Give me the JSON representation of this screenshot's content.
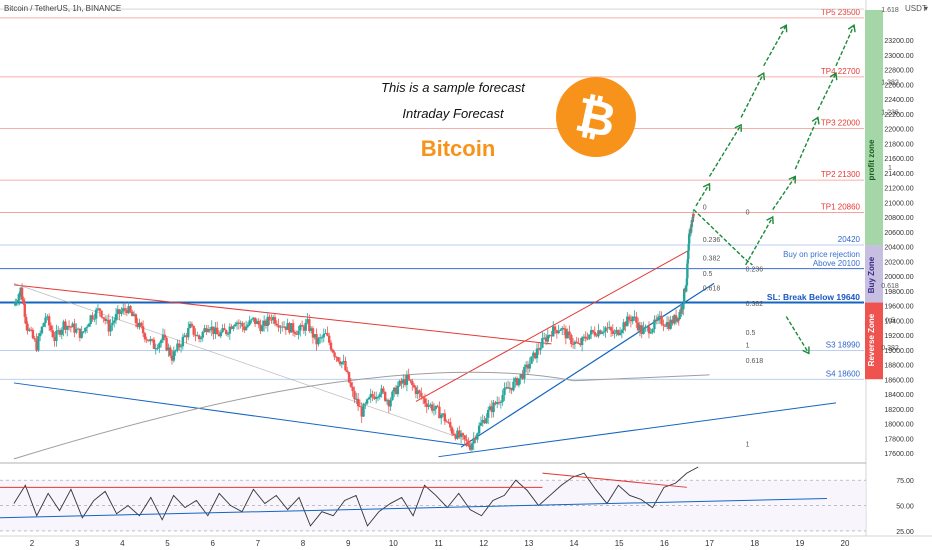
{
  "header": {
    "symbol_label": "Bitcoin / TetherUS, 1h, BINANCE"
  },
  "axis": {
    "currency_label": "USDT"
  },
  "annotations": {
    "sample_forecast": "This is a sample forecast",
    "intraday_forecast": "Intraday Forecast",
    "bitcoin_title": "Bitcoin",
    "buy_on_rejection_1": "Buy on price rejection",
    "buy_on_rejection_2": "Above 20100",
    "stop_loss": "SL: Break Below 19640"
  },
  "zones": {
    "profit": {
      "label": "profit zone",
      "color": "#a5d6a7"
    },
    "buy": {
      "label": "Buy Zone",
      "color": "#c7bfe0"
    },
    "reverse": {
      "label": "Reverse Zone",
      "color": "#ef5350"
    }
  },
  "colors": {
    "candle_up": "#26a69a",
    "candle_down": "#ef5350",
    "tp_line": "#f28b82",
    "support_line": "#5b8bd8",
    "trend_red": "#e53935",
    "trend_blue": "#1565c0",
    "arrow_green": "#1b8a3a",
    "bitcoin_orange": "#f7931a",
    "rsi_line": "#333333"
  },
  "chart_data": [
    {
      "type": "candlestick",
      "title": "Bitcoin / TetherUS, 1h, BINANCE",
      "x_ticks": [
        "2",
        "3",
        "4",
        "5",
        "6",
        "7",
        "8",
        "9",
        "10",
        "11",
        "12",
        "13",
        "14",
        "15",
        "16",
        "17",
        "18",
        "19",
        "20"
      ],
      "y_ticks": [
        17600,
        17800,
        18000,
        18200,
        18400,
        18600,
        18800,
        19000,
        19200,
        19400,
        19600,
        19800,
        20000,
        20200,
        20400,
        20600,
        20800,
        21000,
        21200,
        21400,
        21600,
        21800,
        22000,
        22200,
        22400,
        22600,
        22800,
        23000,
        23200
      ],
      "ylim": [
        17480,
        23620
      ],
      "xlim": [
        1.6,
        20.4
      ],
      "price_path": [
        [
          1.6,
          19600
        ],
        [
          1.75,
          19820
        ],
        [
          1.9,
          19300
        ],
        [
          2.1,
          19050
        ],
        [
          2.3,
          19450
        ],
        [
          2.5,
          19150
        ],
        [
          2.7,
          19350
        ],
        [
          2.9,
          19300
        ],
        [
          3.1,
          19200
        ],
        [
          3.3,
          19450
        ],
        [
          3.5,
          19550
        ],
        [
          3.7,
          19300
        ],
        [
          3.9,
          19480
        ],
        [
          4.1,
          19560
        ],
        [
          4.3,
          19380
        ],
        [
          4.5,
          19200
        ],
        [
          4.7,
          19050
        ],
        [
          4.9,
          19150
        ],
        [
          5.1,
          18900
        ],
        [
          5.3,
          19100
        ],
        [
          5.5,
          19300
        ],
        [
          5.7,
          19150
        ],
        [
          5.9,
          19350
        ],
        [
          6.1,
          19200
        ],
        [
          6.3,
          19250
        ],
        [
          6.5,
          19400
        ],
        [
          6.7,
          19300
        ],
        [
          6.9,
          19400
        ],
        [
          7.1,
          19300
        ],
        [
          7.3,
          19450
        ],
        [
          7.5,
          19350
        ],
        [
          7.7,
          19300
        ],
        [
          7.9,
          19250
        ],
        [
          8.1,
          19350
        ],
        [
          8.3,
          19100
        ],
        [
          8.5,
          19200
        ],
        [
          8.7,
          18950
        ],
        [
          8.9,
          18800
        ],
        [
          9.1,
          18400
        ],
        [
          9.3,
          18150
        ],
        [
          9.5,
          18350
        ],
        [
          9.7,
          18450
        ],
        [
          9.9,
          18300
        ],
        [
          10.1,
          18500
        ],
        [
          10.3,
          18600
        ],
        [
          10.5,
          18450
        ],
        [
          10.7,
          18300
        ],
        [
          10.9,
          18200
        ],
        [
          11.1,
          18100
        ],
        [
          11.3,
          17900
        ],
        [
          11.5,
          17800
        ],
        [
          11.7,
          17700
        ],
        [
          11.9,
          17950
        ],
        [
          12.1,
          18150
        ],
        [
          12.3,
          18300
        ],
        [
          12.5,
          18450
        ],
        [
          12.7,
          18550
        ],
        [
          12.9,
          18700
        ],
        [
          13.1,
          18900
        ],
        [
          13.3,
          19100
        ],
        [
          13.5,
          19250
        ],
        [
          13.7,
          19300
        ],
        [
          13.9,
          19150
        ],
        [
          14.1,
          19050
        ],
        [
          14.3,
          19200
        ],
        [
          14.5,
          19250
        ],
        [
          14.7,
          19300
        ],
        [
          14.9,
          19200
        ],
        [
          15.1,
          19350
        ],
        [
          15.3,
          19450
        ],
        [
          15.5,
          19250
        ],
        [
          15.7,
          19300
        ],
        [
          15.9,
          19400
        ],
        [
          16.1,
          19350
        ],
        [
          16.3,
          19450
        ],
        [
          16.4,
          19600
        ],
        [
          16.5,
          20000
        ],
        [
          16.55,
          20500
        ],
        [
          16.6,
          20700
        ],
        [
          16.65,
          20850
        ]
      ],
      "levels": [
        {
          "label": "TP5 23500",
          "value": 23500,
          "kind": "tp"
        },
        {
          "label": "TP4 22700",
          "value": 22700,
          "kind": "tp"
        },
        {
          "label": "TP3 22000",
          "value": 22000,
          "kind": "tp"
        },
        {
          "label": "TP2 21300",
          "value": 21300,
          "kind": "tp"
        },
        {
          "label": "TP1 20860",
          "value": 20860,
          "kind": "tp"
        },
        {
          "label": "20420",
          "value": 20420,
          "kind": "support"
        },
        {
          "label": "S3 18990",
          "value": 18990,
          "kind": "support"
        },
        {
          "label": "S4 18600",
          "value": 18600,
          "kind": "support"
        }
      ],
      "fib_labels_right": [
        {
          "label": "1.618",
          "value": 23620
        },
        {
          "label": "1.382",
          "value": 22640
        },
        {
          "label": "1.236",
          "value": 22230
        },
        {
          "label": "1",
          "value": 21480
        },
        {
          "label": "0.618",
          "value": 19880
        },
        {
          "label": "0.5",
          "value": 19410
        },
        {
          "label": "0.382",
          "value": 19040
        }
      ],
      "fib_labels_mid_1": [
        {
          "label": "0",
          "value": 20860
        },
        {
          "label": "0.236",
          "value": 20420
        },
        {
          "label": "0.382",
          "value": 20170
        },
        {
          "label": "0.5",
          "value": 19960
        },
        {
          "label": "0.618",
          "value": 19760
        }
      ],
      "fib_labels_mid_2": [
        {
          "label": "0",
          "value": 20790
        },
        {
          "label": "0.236",
          "value": 20020
        },
        {
          "label": "0.382",
          "value": 19550
        },
        {
          "label": "0.5",
          "value": 19160
        },
        {
          "label": "1",
          "value": 18990
        },
        {
          "label": "0.618",
          "value": 18780
        },
        {
          "label": "1",
          "value": 17650
        }
      ]
    },
    {
      "type": "line",
      "title": "RSI",
      "y_ticks": [
        25,
        50,
        75
      ],
      "ylim": [
        20,
        90
      ],
      "series": [
        {
          "values": [
            52,
            70,
            40,
            62,
            45,
            66,
            38,
            55,
            64,
            42,
            50,
            40,
            58,
            36,
            60,
            48,
            55,
            40,
            62,
            50,
            44,
            66,
            52,
            60,
            46,
            58,
            30,
            44,
            40,
            55,
            60,
            30,
            44,
            52,
            58,
            40,
            70,
            60,
            48,
            62,
            46,
            40,
            55,
            60,
            75,
            65,
            50,
            60,
            70,
            78,
            82,
            66,
            52,
            70,
            60,
            56,
            48,
            68,
            72,
            82,
            88
          ]
        }
      ]
    }
  ]
}
